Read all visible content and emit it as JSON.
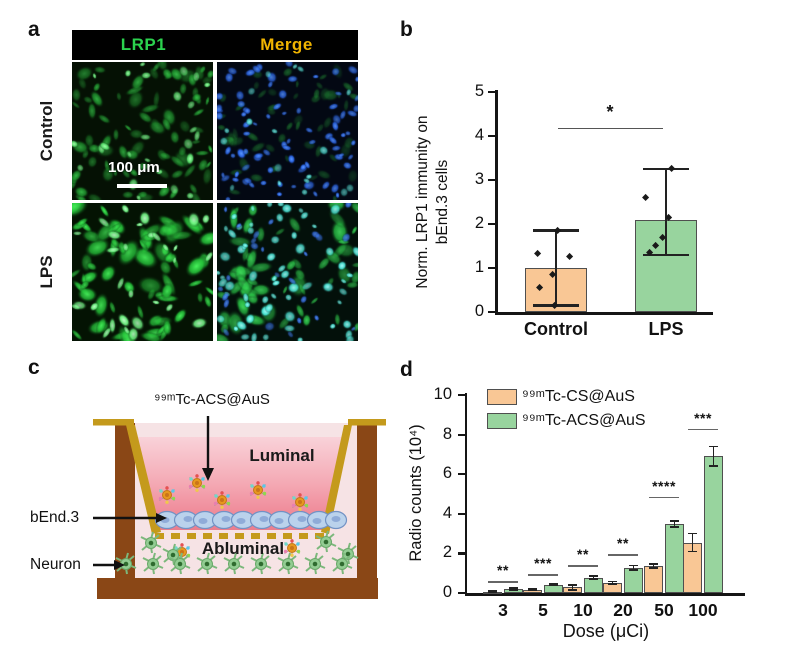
{
  "figure": {
    "panels": {
      "a": "a",
      "b": "b",
      "c": "c",
      "d": "d"
    }
  },
  "panel_a": {
    "column_headers": [
      {
        "label": "LRP1",
        "color": "#2bd14e"
      },
      {
        "label": "Merge",
        "color": "#f0b400"
      }
    ],
    "row_labels": [
      "Control",
      "LPS"
    ],
    "scale_bar_text": "100 μm",
    "microscopy": [
      {
        "id": "control-lrp1",
        "bg": "#051104",
        "seed": 11,
        "layers": [
          {
            "color": "rgba(30,150,45,0.85)",
            "core": "rgba(60,210,80,0.9)",
            "count": 90,
            "size": [
              4,
              11
            ],
            "squish": [
              0.35,
              0.8
            ],
            "alpha": [
              0.35,
              0.95
            ]
          },
          {
            "color": "rgba(90,230,110,0.9)",
            "core": "rgba(160,255,170,1)",
            "count": 25,
            "size": [
              3,
              7
            ],
            "squish": [
              0.5,
              0.9
            ],
            "alpha": [
              0.6,
              1
            ]
          }
        ]
      },
      {
        "id": "control-merge",
        "bg": "#030813",
        "seed": 22,
        "layers": [
          {
            "color": "rgba(30,150,50,0.7)",
            "core": "rgba(50,190,70,0.8)",
            "count": 55,
            "size": [
              4,
              10
            ],
            "squish": [
              0.4,
              0.8
            ],
            "alpha": [
              0.25,
              0.6
            ]
          },
          {
            "color": "rgba(40,100,235,0.95)",
            "core": "rgba(90,150,255,1)",
            "count": 85,
            "size": [
              3,
              6.5
            ],
            "squish": [
              0.55,
              0.95
            ],
            "alpha": [
              0.6,
              1
            ]
          },
          {
            "color": "rgba(70,220,210,0.9)",
            "core": "rgba(140,255,245,1)",
            "count": 18,
            "size": [
              3,
              5.5
            ],
            "squish": [
              0.6,
              1
            ],
            "alpha": [
              0.5,
              0.9
            ]
          }
        ]
      },
      {
        "id": "lps-lrp1",
        "bg": "#041303",
        "seed": 33,
        "layers": [
          {
            "color": "rgba(35,190,55,0.9)",
            "core": "rgba(70,240,90,1)",
            "count": 75,
            "size": [
              6,
              16
            ],
            "squish": [
              0.3,
              0.75
            ],
            "alpha": [
              0.5,
              1
            ]
          },
          {
            "color": "rgba(110,250,130,0.95)",
            "core": "rgba(190,255,200,1)",
            "count": 30,
            "size": [
              4,
              9
            ],
            "squish": [
              0.4,
              0.8
            ],
            "alpha": [
              0.7,
              1
            ]
          }
        ]
      },
      {
        "id": "lps-merge",
        "bg": "#03100a",
        "seed": 44,
        "layers": [
          {
            "color": "rgba(40,200,70,0.85)",
            "core": "rgba(70,235,100,0.95)",
            "count": 60,
            "size": [
              5,
              14
            ],
            "squish": [
              0.35,
              0.8
            ],
            "alpha": [
              0.45,
              0.9
            ]
          },
          {
            "color": "rgba(70,230,215,0.95)",
            "core": "rgba(160,255,250,1)",
            "count": 65,
            "size": [
              3,
              7
            ],
            "squish": [
              0.55,
              0.95
            ],
            "alpha": [
              0.6,
              1
            ]
          },
          {
            "color": "rgba(50,110,240,0.9)",
            "core": "rgba(90,150,255,1)",
            "count": 25,
            "size": [
              3,
              6
            ],
            "squish": [
              0.5,
              0.9
            ],
            "alpha": [
              0.5,
              0.9
            ]
          }
        ]
      }
    ]
  },
  "panel_c": {
    "labels": {
      "title": "⁹⁹ᵐTc-ACS@AuS",
      "luminal": "Luminal",
      "abluminal": "Abluminal",
      "bend3": "bEnd.3",
      "neuron": "Neuron"
    },
    "colors": {
      "well_brown": "#8a4716",
      "insert_gold": "#c49a1c",
      "luminal_top": "#f9d2d9",
      "luminal_bottom": "#ea7e8e",
      "abluminal_pink": "#f6e3e5",
      "cell_blue": "#bad2ec",
      "neuron_green": "#92cc92",
      "particle_core": "#e8981e"
    }
  },
  "chart_data": [
    {
      "type": "bar",
      "panel": "b",
      "ylabel_line1": "Norm. LRP1 immunity on",
      "ylabel_line2": "bEnd.3 cells",
      "categories": [
        "Control",
        "LPS"
      ],
      "values": [
        1.0,
        2.08
      ],
      "bar_colors": [
        "#f9c795",
        "#98d49e"
      ],
      "bar_edge": "#4f4f4f",
      "error_low": [
        0.15,
        1.3
      ],
      "error_high": [
        1.85,
        3.25
      ],
      "points": [
        [
          [
            0.15,
            -1
          ],
          [
            0.55,
            -16
          ],
          [
            0.85,
            -3
          ],
          [
            1.25,
            14
          ],
          [
            1.32,
            -18
          ],
          [
            1.85,
            2
          ]
        ],
        [
          [
            1.35,
            -16
          ],
          [
            1.5,
            -10
          ],
          [
            1.7,
            -3
          ],
          [
            2.15,
            3
          ],
          [
            2.6,
            -20
          ],
          [
            3.25,
            6
          ]
        ]
      ],
      "yticks": [
        0,
        1,
        2,
        3,
        4,
        5
      ],
      "ylim": [
        0,
        5
      ],
      "significance": {
        "label": "*",
        "line_y": 4.18
      }
    },
    {
      "type": "grouped_bar",
      "panel": "d",
      "xlabel": "Dose (μCi)",
      "ylabel": "Radio counts (10⁴)",
      "categories": [
        "3",
        "5",
        "10",
        "20",
        "50",
        "100"
      ],
      "series": [
        {
          "name": "⁹⁹ᵐTc-CS@AuS",
          "color": "#f9c795",
          "values": [
            0.07,
            0.16,
            0.28,
            0.52,
            1.38,
            2.55
          ],
          "errors": [
            0.03,
            0.03,
            0.13,
            0.06,
            0.1,
            0.45
          ]
        },
        {
          "name": "⁹⁹ᵐTc-ACS@AuS",
          "color": "#98d49e",
          "values": [
            0.21,
            0.42,
            0.78,
            1.27,
            3.5,
            6.9
          ],
          "errors": [
            0.05,
            0.04,
            0.06,
            0.12,
            0.15,
            0.5
          ]
        }
      ],
      "yticks": [
        0,
        2,
        4,
        6,
        8,
        10
      ],
      "ylim": [
        0,
        10
      ],
      "legend_position": "upper-left",
      "significance": [
        {
          "label": "**",
          "line_y": 0.6
        },
        {
          "label": "***",
          "line_y": 0.95
        },
        {
          "label": "**",
          "line_y": 1.4
        },
        {
          "label": "**",
          "line_y": 1.95
        },
        {
          "label": "****",
          "line_y": 4.85
        },
        {
          "label": "***",
          "line_y": 8.3
        }
      ]
    }
  ]
}
